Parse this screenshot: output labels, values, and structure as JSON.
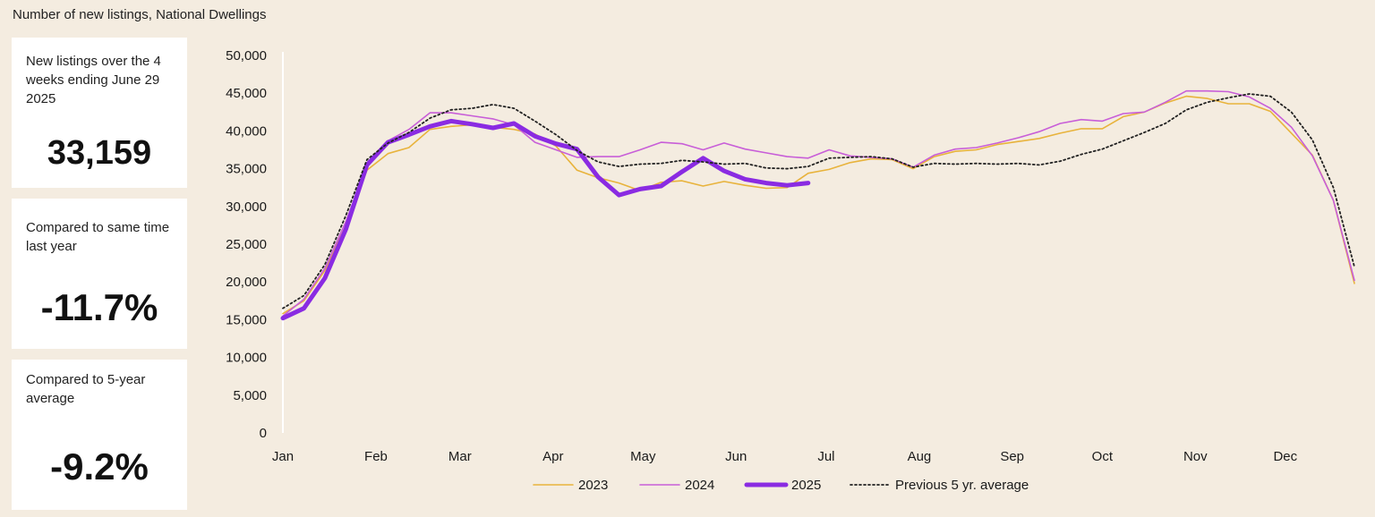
{
  "header": {
    "title": "Number of new listings, National Dwellings"
  },
  "stats": [
    {
      "label": "New listings over the 4 weeks ending June 29 2025",
      "value": "33,159"
    },
    {
      "label": "Compared to same time last year",
      "value": "-11.7%"
    },
    {
      "label": "Compared to 5-year average",
      "value": "-9.2%"
    }
  ],
  "chart_data": {
    "type": "line",
    "title": "",
    "xlabel": "",
    "ylabel": "",
    "ylim": [
      0,
      50000
    ],
    "yticks": [
      0,
      5000,
      10000,
      15000,
      20000,
      25000,
      30000,
      35000,
      40000,
      45000,
      50000
    ],
    "ytick_labels": [
      "0",
      "5,000",
      "10,000",
      "15,000",
      "20,000",
      "25,000",
      "30,000",
      "35,000",
      "40,000",
      "45,000",
      "50,000"
    ],
    "xlim": [
      1,
      52
    ],
    "xticks": [
      1,
      5.43,
      9.43,
      13.86,
      18.14,
      22.57,
      26.86,
      31.29,
      35.71,
      40,
      44.43,
      48.71
    ],
    "xtick_labels": [
      "Jan",
      "Feb",
      "Mar",
      "Apr",
      "May",
      "Jun",
      "Jul",
      "Aug",
      "Sep",
      "Oct",
      "Nov",
      "Dec"
    ],
    "grid": false,
    "legend": "bottom",
    "series": [
      {
        "name": "2023",
        "color": "#e8b33c",
        "style": "solid",
        "x": [
          1,
          2,
          3,
          4,
          5,
          6,
          7,
          8,
          9,
          10,
          11,
          12,
          13,
          14,
          15,
          16,
          17,
          18,
          19,
          20,
          21,
          22,
          23,
          24,
          25,
          26,
          27,
          28,
          29,
          30,
          31,
          32,
          33,
          34,
          35,
          36,
          37,
          38,
          39,
          40,
          41,
          42,
          43,
          44,
          45,
          46,
          47,
          48,
          49,
          50,
          51,
          52
        ],
        "y": [
          15800,
          17500,
          21500,
          27500,
          34800,
          37000,
          37800,
          40200,
          40600,
          40800,
          40500,
          40200,
          39600,
          38000,
          34800,
          33800,
          33100,
          32100,
          33200,
          33400,
          32700,
          33300,
          32800,
          32400,
          32500,
          34400,
          34900,
          35800,
          36300,
          36200,
          35000,
          36600,
          37300,
          37500,
          38200,
          38600,
          39000,
          39700,
          40300,
          40300,
          41900,
          42500,
          43700,
          44600,
          44300,
          43600,
          43600,
          42600,
          39700,
          36800,
          30800,
          19800
        ]
      },
      {
        "name": "2024",
        "color": "#c85ed8",
        "style": "solid",
        "x": [
          1,
          2,
          3,
          4,
          5,
          6,
          7,
          8,
          9,
          10,
          11,
          12,
          13,
          14,
          15,
          16,
          17,
          18,
          19,
          20,
          21,
          22,
          23,
          24,
          25,
          26,
          27,
          28,
          29,
          30,
          31,
          32,
          33,
          34,
          35,
          36,
          37,
          38,
          39,
          40,
          41,
          42,
          43,
          44,
          45,
          46,
          47,
          48,
          49,
          50,
          51,
          52
        ],
        "y": [
          15500,
          17700,
          21800,
          28000,
          35500,
          38700,
          40200,
          42400,
          42400,
          42000,
          41600,
          40800,
          38500,
          37500,
          36500,
          36600,
          36600,
          37500,
          38500,
          38300,
          37500,
          38400,
          37600,
          37100,
          36600,
          36400,
          37500,
          36700,
          36500,
          36300,
          35200,
          36800,
          37600,
          37800,
          38400,
          39100,
          39900,
          41000,
          41500,
          41300,
          42300,
          42500,
          43800,
          45300,
          45300,
          45200,
          44500,
          43000,
          40500,
          36700,
          30800,
          20200
        ]
      },
      {
        "name": "2025",
        "color": "#8a2be2",
        "style": "bold",
        "x": [
          1,
          2,
          3,
          4,
          5,
          6,
          7,
          8,
          9,
          10,
          11,
          12,
          13,
          14,
          15,
          16,
          17,
          18,
          19,
          20,
          21,
          22,
          23,
          24,
          25,
          26
        ],
        "y": [
          15200,
          16500,
          20500,
          27000,
          35500,
          38500,
          39500,
          40600,
          41300,
          40900,
          40400,
          41000,
          39300,
          38300,
          37600,
          33900,
          31500,
          32300,
          32700,
          34600,
          36400,
          34700,
          33600,
          33100,
          32800,
          33100
        ]
      },
      {
        "name": "Previous 5 yr. average",
        "color": "#222222",
        "style": "dotted",
        "x": [
          1,
          2,
          3,
          4,
          5,
          6,
          7,
          8,
          9,
          10,
          11,
          12,
          13,
          14,
          15,
          16,
          17,
          18,
          19,
          20,
          21,
          22,
          23,
          24,
          25,
          26,
          27,
          28,
          29,
          30,
          31,
          32,
          33,
          34,
          35,
          36,
          37,
          38,
          39,
          40,
          41,
          42,
          43,
          44,
          45,
          46,
          47,
          48,
          49,
          50,
          51,
          52
        ],
        "y": [
          16500,
          18200,
          22300,
          28800,
          36200,
          38400,
          39800,
          41700,
          42800,
          43000,
          43500,
          43000,
          41300,
          39500,
          37400,
          35900,
          35300,
          35600,
          35700,
          36100,
          35900,
          35600,
          35700,
          35100,
          35000,
          35300,
          36400,
          36500,
          36600,
          36300,
          35200,
          35700,
          35600,
          35700,
          35600,
          35700,
          35500,
          36000,
          36900,
          37600,
          38700,
          39800,
          41000,
          42800,
          43800,
          44400,
          44900,
          44600,
          42500,
          38800,
          32500,
          22000
        ]
      }
    ]
  }
}
